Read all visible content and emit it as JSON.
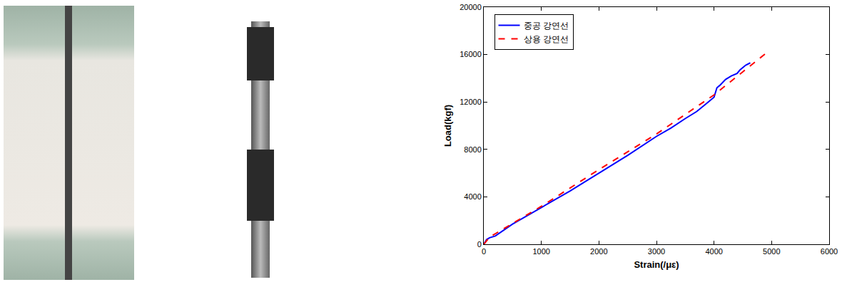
{
  "chart_data": {
    "type": "line",
    "x_label": "Strain(/με)",
    "y_label": "Load(kgf)",
    "xlim": [
      0,
      6000
    ],
    "xticks": [
      0,
      1000,
      2000,
      3000,
      4000,
      5000,
      6000
    ],
    "ylim": [
      0,
      20000
    ],
    "yticks": [
      0,
      4000,
      8000,
      12000,
      16000,
      20000
    ],
    "grid": false,
    "legend": "upper left",
    "series": [
      {
        "name": "중공 강연선",
        "color": "#0000ff",
        "line_style": "solid",
        "x": [
          0,
          50,
          100,
          200,
          500,
          1000,
          1500,
          2000,
          2500,
          3000,
          3250,
          3500,
          3700,
          3900,
          4000,
          4050,
          4100,
          4200,
          4300,
          4400,
          4450,
          4550,
          4630
        ],
        "values": [
          0,
          400,
          550,
          700,
          1700,
          3100,
          4500,
          6000,
          7500,
          9100,
          9800,
          10600,
          11200,
          12000,
          12400,
          13200,
          13400,
          13900,
          14200,
          14400,
          14700,
          15100,
          15300
        ]
      },
      {
        "name": "상용 강연선",
        "color": "#ff0000",
        "line_style": "dash",
        "x": [
          0,
          100,
          1000,
          2000,
          3000,
          4000,
          4900
        ],
        "values": [
          0,
          600,
          3200,
          6300,
          9300,
          12600,
          16100
        ]
      }
    ]
  }
}
